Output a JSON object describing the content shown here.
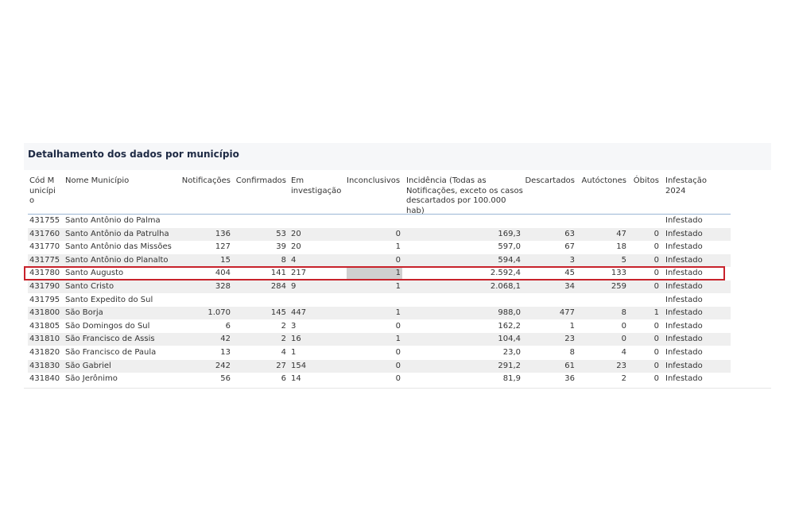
{
  "title": "Detalhamento dos dados por município",
  "table": {
    "headers": [
      "Cód Município",
      "Nome Município",
      "Notificações",
      "Confirmados",
      "Em investigação",
      "Inconclusivos",
      "Incidência (Todas as Notificações, exceto os casos descartados por 100.000 hab)",
      "Descartados",
      "Autóctones",
      "Óbitos",
      "Infestação 2024"
    ],
    "rows": [
      [
        "431755",
        "Santo Antônio do Palma",
        null,
        null,
        null,
        null,
        null,
        null,
        null,
        null,
        "Infestado"
      ],
      [
        "431760",
        "Santo Antônio da Patrulha",
        "136",
        "53",
        "20",
        "0",
        "169,3",
        "63",
        "47",
        "0",
        "Infestado"
      ],
      [
        "431770",
        "Santo Antônio das Missões",
        "127",
        "39",
        "20",
        "1",
        "597,0",
        "67",
        "18",
        "0",
        "Infestado"
      ],
      [
        "431775",
        "Santo Antônio do Planalto",
        "15",
        "8",
        "4",
        "0",
        "594,4",
        "3",
        "5",
        "0",
        "Infestado"
      ],
      [
        "431780",
        "Santo Augusto",
        "404",
        "141",
        "217",
        "1",
        "2.592,4",
        "45",
        "133",
        "0",
        "Infestado"
      ],
      [
        "431790",
        "Santo Cristo",
        "328",
        "284",
        "9",
        "1",
        "2.068,1",
        "34",
        "259",
        "0",
        "Infestado"
      ],
      [
        "431795",
        "Santo Expedito do Sul",
        null,
        null,
        null,
        null,
        null,
        null,
        null,
        null,
        "Infestado"
      ],
      [
        "431800",
        "São Borja",
        "1.070",
        "145",
        "447",
        "1",
        "988,0",
        "477",
        "8",
        "1",
        "Infestado"
      ],
      [
        "431805",
        "São Domingos do Sul",
        "6",
        "2",
        "3",
        "0",
        "162,2",
        "1",
        "0",
        "0",
        "Infestado"
      ],
      [
        "431810",
        "São Francisco de Assis",
        "42",
        "2",
        "16",
        "1",
        "104,4",
        "23",
        "0",
        "0",
        "Infestado"
      ],
      [
        "431820",
        "São Francisco de Paula",
        "13",
        "4",
        "1",
        "0",
        "23,0",
        "8",
        "4",
        "0",
        "Infestado"
      ],
      [
        "431830",
        "São Gabriel",
        "242",
        "27",
        "154",
        "0",
        "291,2",
        "61",
        "23",
        "0",
        "Infestado"
      ],
      [
        "431840",
        "São Jerônimo",
        "56",
        "6",
        "14",
        "0",
        "81,9",
        "36",
        "2",
        "0",
        "Infestado"
      ]
    ]
  }
}
